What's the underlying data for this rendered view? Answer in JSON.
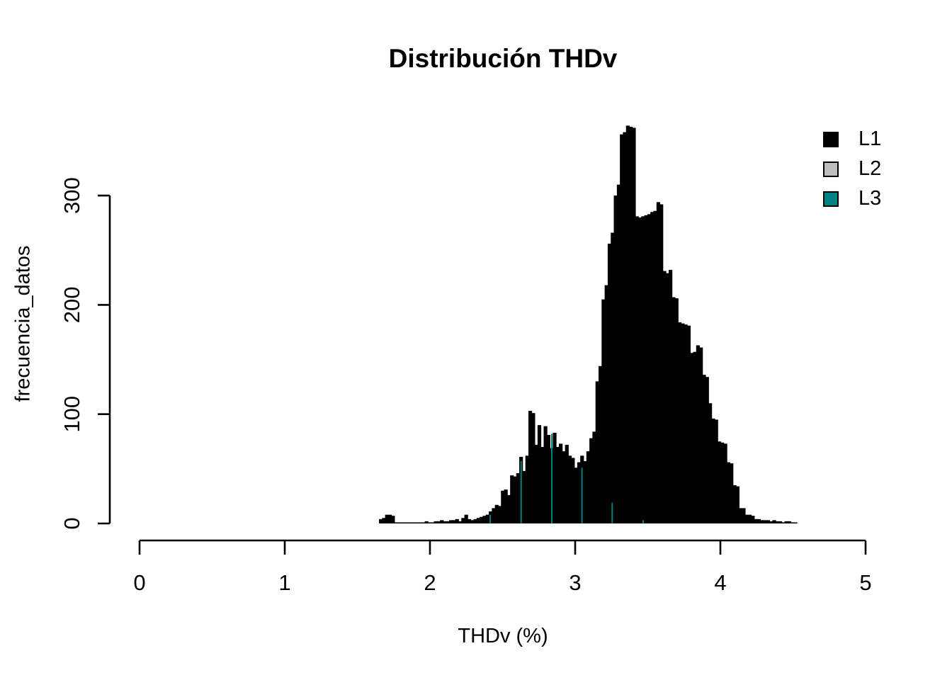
{
  "title": "Distribución THDv",
  "axes": {
    "xlabel": "THDv (%)",
    "ylabel": "frecuencia_datos"
  },
  "legend": {
    "items": [
      {
        "label": "L1",
        "color": "#000000"
      },
      {
        "label": "L2",
        "color": "#bebebe"
      },
      {
        "label": "L3",
        "color": "#008080"
      }
    ]
  },
  "chart_data": {
    "type": "bar",
    "subtype": "histogram",
    "title": "Distribución THDv",
    "xlabel": "THDv (%)",
    "ylabel": "frecuencia_datos",
    "xlim": [
      0,
      5
    ],
    "ylim": [
      0,
      300
    ],
    "x_ticks": [
      0,
      1,
      2,
      3,
      4,
      5
    ],
    "y_ticks": [
      0,
      100,
      200,
      300
    ],
    "grid": false,
    "legend_position": "top-right",
    "series": [
      {
        "name": "L1",
        "color": "#000000",
        "bin_start": 1.649,
        "bin_width": 0.021,
        "counts": [
          4,
          5,
          8,
          8,
          7,
          1,
          1,
          1,
          1,
          1,
          1,
          1,
          1,
          1,
          1,
          2,
          1,
          1,
          2,
          2,
          3,
          2,
          2,
          3,
          3,
          4,
          2,
          5,
          8,
          4,
          3,
          4,
          5,
          6,
          7,
          8,
          11,
          14,
          17,
          16,
          30,
          31,
          26,
          44,
          43,
          46,
          61,
          48,
          62,
          103,
          101,
          72,
          90,
          70,
          89,
          81,
          69,
          83,
          70,
          73,
          66,
          72,
          62,
          60,
          51,
          56,
          62,
          57,
          66,
          78,
          84,
          130,
          144,
          205,
          218,
          256,
          266,
          300,
          310,
          356,
          358,
          364,
          363,
          362,
          281,
          280,
          281,
          282,
          283,
          285,
          286,
          294,
          292,
          231,
          229,
          232,
          207,
          206,
          184,
          183,
          182,
          181,
          156,
          157,
          163,
          161,
          136,
          134,
          110,
          96,
          95,
          75,
          74,
          73,
          56,
          55,
          35,
          34,
          14,
          14,
          8,
          8,
          7,
          4,
          4,
          3,
          3,
          3,
          2,
          3,
          2,
          2,
          1,
          2,
          2,
          1,
          1
        ]
      },
      {
        "name": "L2",
        "color": "#bebebe",
        "counts_visible": []
      },
      {
        "name": "L3",
        "color": "#008080",
        "visible_edges": [
          {
            "x": 2.415,
            "count": 8
          },
          {
            "x": 2.628,
            "count": 57
          },
          {
            "x": 2.839,
            "count": 82
          },
          {
            "x": 3.047,
            "count": 51
          },
          {
            "x": 3.255,
            "count": 19
          },
          {
            "x": 3.468,
            "count": 3
          }
        ]
      }
    ]
  }
}
